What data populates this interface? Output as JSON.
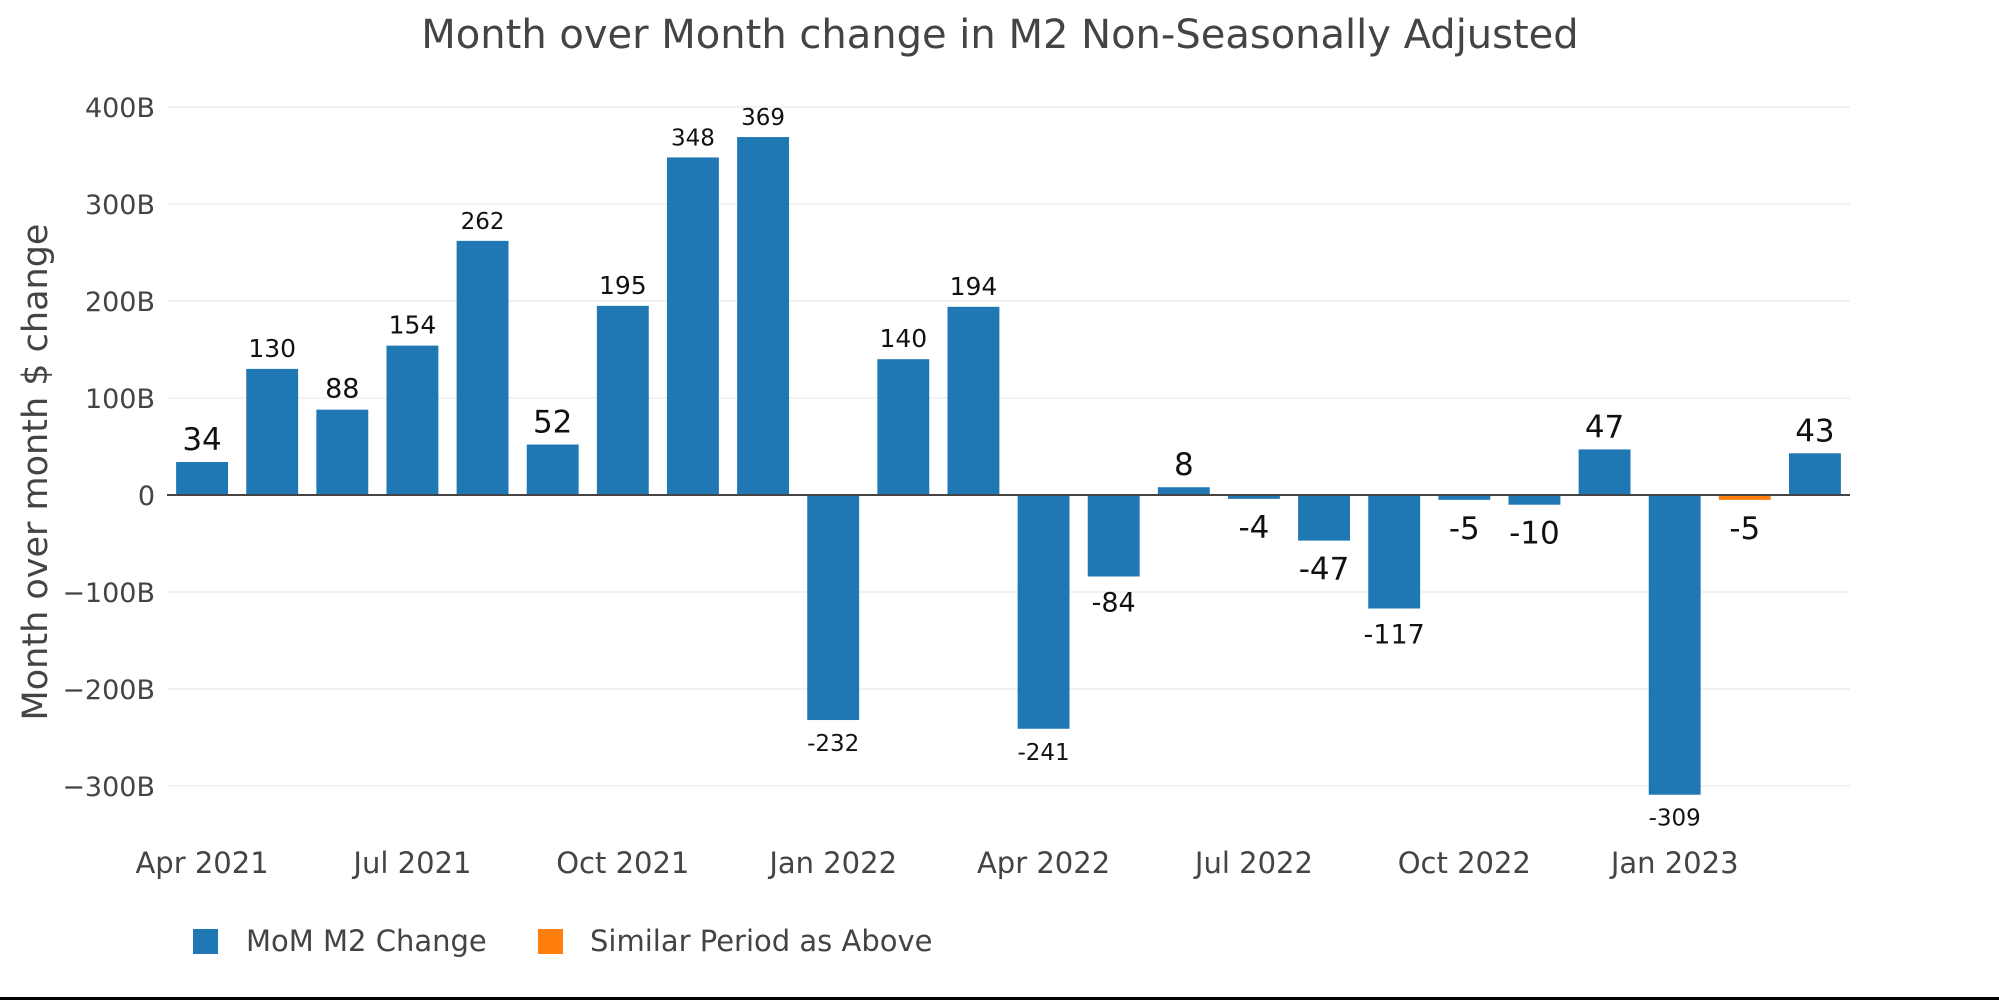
{
  "chart_data": {
    "type": "bar",
    "title": "Month over Month change in M2 Non-Seasonally Adjusted",
    "xlabel": "",
    "ylabel": "Month over month $ change",
    "ylim": [
      -350,
      420
    ],
    "y_unit": "B",
    "y_ticks": [
      {
        "value": 400,
        "label": "400B"
      },
      {
        "value": 300,
        "label": "300B"
      },
      {
        "value": 200,
        "label": "200B"
      },
      {
        "value": 100,
        "label": "100B"
      },
      {
        "value": 0,
        "label": "0"
      },
      {
        "value": -100,
        "label": "−100B"
      },
      {
        "value": -200,
        "label": "−200B"
      },
      {
        "value": -300,
        "label": "−300B"
      }
    ],
    "x_ticks": [
      {
        "index": 0,
        "label": "Apr 2021"
      },
      {
        "index": 3,
        "label": "Jul 2021"
      },
      {
        "index": 6,
        "label": "Oct 2021"
      },
      {
        "index": 9,
        "label": "Jan 2022"
      },
      {
        "index": 12,
        "label": "Apr 2022"
      },
      {
        "index": 15,
        "label": "Jul 2022"
      },
      {
        "index": 18,
        "label": "Oct 2022"
      },
      {
        "index": 21,
        "label": "Jan 2023"
      }
    ],
    "grid": true,
    "legend_position": "bottom-left",
    "categories": [
      "Apr 2021",
      "May 2021",
      "Jun 2021",
      "Jul 2021",
      "Aug 2021",
      "Sep 2021",
      "Oct 2021",
      "Nov 2021",
      "Dec 2021",
      "Jan 2022",
      "Feb 2022",
      "Mar 2022",
      "Apr 2022",
      "May 2022",
      "Jun 2022",
      "Jul 2022",
      "Aug 2022",
      "Sep 2022",
      "Oct 2022",
      "Nov 2022",
      "Dec 2022",
      "Jan 2023",
      "Feb 2023",
      "Mar 2023"
    ],
    "series": [
      {
        "name": "MoM M2 Change",
        "color": "#1f77b4",
        "values": [
          34,
          130,
          88,
          154,
          262,
          52,
          195,
          348,
          369,
          -232,
          140,
          194,
          -241,
          -84,
          8,
          -4,
          -47,
          -117,
          -5,
          -10,
          47,
          -309,
          null,
          43
        ]
      },
      {
        "name": "Similar Period as Above",
        "color": "#ff7f0e",
        "values": [
          null,
          null,
          null,
          null,
          null,
          null,
          null,
          null,
          null,
          null,
          null,
          null,
          null,
          null,
          null,
          null,
          null,
          null,
          null,
          null,
          null,
          null,
          -5,
          null
        ]
      }
    ],
    "data_labels": [
      "34",
      "130",
      "88",
      "154",
      "262",
      "52",
      "195",
      "348",
      "369",
      "-232",
      "140",
      "194",
      "-241",
      "-84",
      "8",
      "-4",
      "-47",
      "-117",
      "-5",
      "-10",
      "47",
      "-309",
      "-5",
      "43"
    ]
  }
}
